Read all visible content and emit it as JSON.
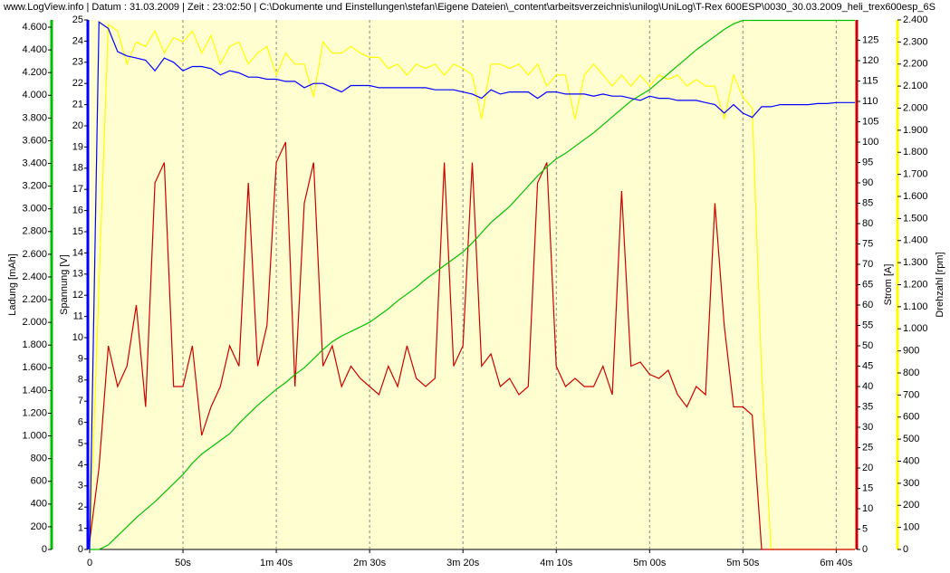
{
  "chart_data": {
    "type": "line",
    "title": "www.LogView.info   |   Datum : 31.03.2009   |   Zeit : 23:02:50   |   C:\\Dokumente und Einstellungen\\stefan\\Eigene Dateien\\_content\\arbeitsverzeichnis\\unilog\\UniLog\\T-Rex 600ESP\\0030_30.03.2009_heli_trex600esp_6S",
    "x": [
      0,
      5,
      10,
      15,
      20,
      25,
      30,
      35,
      40,
      45,
      50,
      55,
      60,
      65,
      70,
      75,
      80,
      85,
      90,
      95,
      100,
      105,
      110,
      115,
      120,
      125,
      130,
      135,
      140,
      145,
      150,
      155,
      160,
      165,
      170,
      175,
      180,
      185,
      190,
      195,
      200,
      205,
      210,
      215,
      220,
      225,
      230,
      235,
      240,
      245,
      250,
      255,
      260,
      265,
      270,
      275,
      280,
      285,
      290,
      295,
      300,
      305,
      310,
      315,
      320,
      325,
      330,
      335,
      340,
      345,
      350,
      355,
      360,
      365,
      370,
      375,
      380,
      385,
      390,
      395,
      400,
      405,
      410
    ],
    "xlim": [
      0,
      410
    ],
    "xticks": [
      0,
      {
        "value": 50,
        "label": "50s"
      },
      {
        "value": 100,
        "label": "1m 40s"
      },
      {
        "value": 150,
        "label": "2m 30s"
      },
      {
        "value": 200,
        "label": "3m 20s"
      },
      {
        "value": 250,
        "label": "4m 10s"
      },
      {
        "value": 300,
        "label": "5m 00s"
      },
      {
        "value": 350,
        "label": "5m 50s"
      },
      {
        "value": 400,
        "label": "6m 40s"
      }
    ],
    "grid": true,
    "y_axes": [
      {
        "label": "Ladung [mAh]",
        "side": "left",
        "color": "#00c000",
        "ylim": [
          0,
          4664
        ],
        "yticks": [
          0,
          200,
          400,
          600,
          800,
          {
            "value": 1000,
            "label": "1.000"
          },
          {
            "value": 1200,
            "label": "1.200"
          },
          {
            "value": 1400,
            "label": "1.400"
          },
          {
            "value": 1600,
            "label": "1.600"
          },
          {
            "value": 1800,
            "label": "1.800"
          },
          {
            "value": 2000,
            "label": "2.000"
          },
          {
            "value": 2200,
            "label": "2.200"
          },
          {
            "value": 2400,
            "label": "2.400"
          },
          {
            "value": 2600,
            "label": "2.600"
          },
          {
            "value": 2800,
            "label": "2.800"
          },
          {
            "value": 3000,
            "label": "3.000"
          },
          {
            "value": 3200,
            "label": "3.200"
          },
          {
            "value": 3400,
            "label": "3.400"
          },
          {
            "value": 3600,
            "label": "3.600"
          },
          {
            "value": 3800,
            "label": "3.800"
          },
          {
            "value": 4000,
            "label": "4.000"
          },
          {
            "value": 4200,
            "label": "4.200"
          },
          {
            "value": 4400,
            "label": "4.400"
          },
          {
            "value": 4600,
            "label": "4.600"
          }
        ]
      },
      {
        "label": "Spannung [V]",
        "side": "left",
        "color": "#0000ff",
        "ylim": [
          0,
          25
        ],
        "yticks": [
          0,
          1,
          2,
          3,
          4,
          5,
          6,
          7,
          8,
          9,
          10,
          11,
          12,
          13,
          14,
          15,
          16,
          17,
          18,
          19,
          20,
          21,
          22,
          23,
          24,
          25
        ]
      },
      {
        "label": "Strom [A]",
        "side": "right",
        "color": "#cc0000",
        "ylim": [
          0,
          130
        ],
        "yticks": [
          0,
          5,
          10,
          15,
          20,
          25,
          30,
          35,
          40,
          45,
          50,
          55,
          60,
          65,
          70,
          75,
          80,
          85,
          90,
          95,
          100,
          105,
          110,
          115,
          120,
          125
        ]
      },
      {
        "label": "Drehzahl [rpm]",
        "side": "right",
        "color": "#ffff00",
        "ylim": [
          0,
          2400
        ],
        "yticks": [
          0,
          100,
          200,
          300,
          400,
          500,
          600,
          700,
          800,
          900,
          {
            "value": 1000,
            "label": "1.000"
          },
          {
            "value": 1100,
            "label": "1.100"
          },
          {
            "value": 1200,
            "label": "1.200"
          },
          {
            "value": 1300,
            "label": "1.300"
          },
          {
            "value": 1400,
            "label": "1.400"
          },
          {
            "value": 1500,
            "label": "1.500"
          },
          {
            "value": 1600,
            "label": "1.600"
          },
          {
            "value": 1700,
            "label": "1.700"
          },
          {
            "value": 1800,
            "label": "1.800"
          },
          {
            "value": 1900,
            "label": "1.900"
          },
          {
            "value": 2000,
            "label": "2.000"
          },
          {
            "value": 2100,
            "label": "2.100"
          },
          {
            "value": 2200,
            "label": "2.200"
          },
          {
            "value": 2300,
            "label": "2.300"
          },
          {
            "value": 2400,
            "label": "2.400"
          }
        ]
      }
    ],
    "series": [
      {
        "axis": 3,
        "color": "#ffff00",
        "values": [
          0,
          1200,
          2380,
          2350,
          2200,
          2300,
          2280,
          2350,
          2250,
          2320,
          2300,
          2350,
          2250,
          2330,
          2200,
          2280,
          2300,
          2200,
          2250,
          2280,
          2150,
          2250,
          2200,
          2200,
          2050,
          2300,
          2250,
          2250,
          2280,
          2250,
          2230,
          2230,
          2180,
          2200,
          2150,
          2200,
          2180,
          2200,
          2150,
          2200,
          2180,
          2150,
          1950,
          2200,
          2200,
          2180,
          2200,
          2150,
          2200,
          2100,
          2150,
          2150,
          1950,
          2150,
          2200,
          2150,
          2100,
          2150,
          2100,
          2150,
          2100,
          2150,
          2130,
          2150,
          2100,
          2130,
          2100,
          2100,
          1950,
          2150,
          2050,
          2000,
          800,
          0,
          0,
          0,
          0,
          0,
          0,
          0,
          0,
          0,
          0
        ]
      },
      {
        "axis": 2,
        "color": "#cc0000",
        "values": [
          2,
          20,
          50,
          40,
          45,
          60,
          35,
          90,
          95,
          40,
          40,
          50,
          28,
          35,
          40,
          50,
          45,
          90,
          45,
          55,
          95,
          100,
          40,
          85,
          95,
          45,
          50,
          40,
          45,
          42,
          40,
          38,
          45,
          40,
          50,
          42,
          40,
          42,
          95,
          45,
          50,
          95,
          45,
          48,
          40,
          42,
          38,
          40,
          90,
          95,
          45,
          40,
          42,
          40,
          40,
          45,
          38,
          88,
          45,
          46,
          43,
          42,
          44,
          38,
          35,
          40,
          38,
          85,
          55,
          35,
          35,
          33,
          0,
          0,
          0,
          0,
          0,
          0,
          0,
          0,
          0,
          0,
          0
        ]
      },
      {
        "axis": 0,
        "color": "#00c000",
        "values": [
          0,
          0,
          40,
          120,
          200,
          280,
          350,
          420,
          500,
          580,
          660,
          760,
          840,
          900,
          960,
          1020,
          1110,
          1190,
          1270,
          1340,
          1410,
          1470,
          1540,
          1600,
          1680,
          1760,
          1830,
          1880,
          1920,
          1960,
          2000,
          2060,
          2120,
          2190,
          2250,
          2310,
          2380,
          2440,
          2500,
          2560,
          2620,
          2700,
          2790,
          2880,
          2950,
          3020,
          3110,
          3200,
          3290,
          3370,
          3440,
          3490,
          3550,
          3610,
          3670,
          3740,
          3810,
          3880,
          3950,
          4000,
          4050,
          4120,
          4190,
          4260,
          4330,
          4400,
          4460,
          4520,
          4580,
          4630,
          4660,
          4660,
          4660,
          4660,
          4660,
          4660,
          4660,
          4660,
          4660,
          4660,
          4660,
          4660,
          4660
        ]
      },
      {
        "axis": 1,
        "color": "#0000ff",
        "values": [
          0,
          24.9,
          24.6,
          23.5,
          23.3,
          23.2,
          23.1,
          22.6,
          23.2,
          23,
          22.6,
          22.8,
          22.8,
          22.7,
          22.4,
          22.6,
          22.5,
          22.3,
          22.3,
          22.2,
          22.2,
          22.1,
          22.1,
          21.8,
          22,
          22,
          21.8,
          21.6,
          21.9,
          21.9,
          21.9,
          21.8,
          21.8,
          21.8,
          21.8,
          21.8,
          21.8,
          21.7,
          21.7,
          21.7,
          21.6,
          21.5,
          21.3,
          21.7,
          21.5,
          21.6,
          21.6,
          21.6,
          21.3,
          21.6,
          21.6,
          21.5,
          21.5,
          21.5,
          21.4,
          21.5,
          21.4,
          21.4,
          21.3,
          21.2,
          21.4,
          21.3,
          21.3,
          21.2,
          21.2,
          21.2,
          21.1,
          21,
          20.6,
          21,
          20.6,
          20.4,
          20.9,
          20.9,
          21,
          21,
          21,
          21,
          21.05,
          21.05,
          21.1,
          21.1,
          21.1
        ]
      }
    ]
  }
}
